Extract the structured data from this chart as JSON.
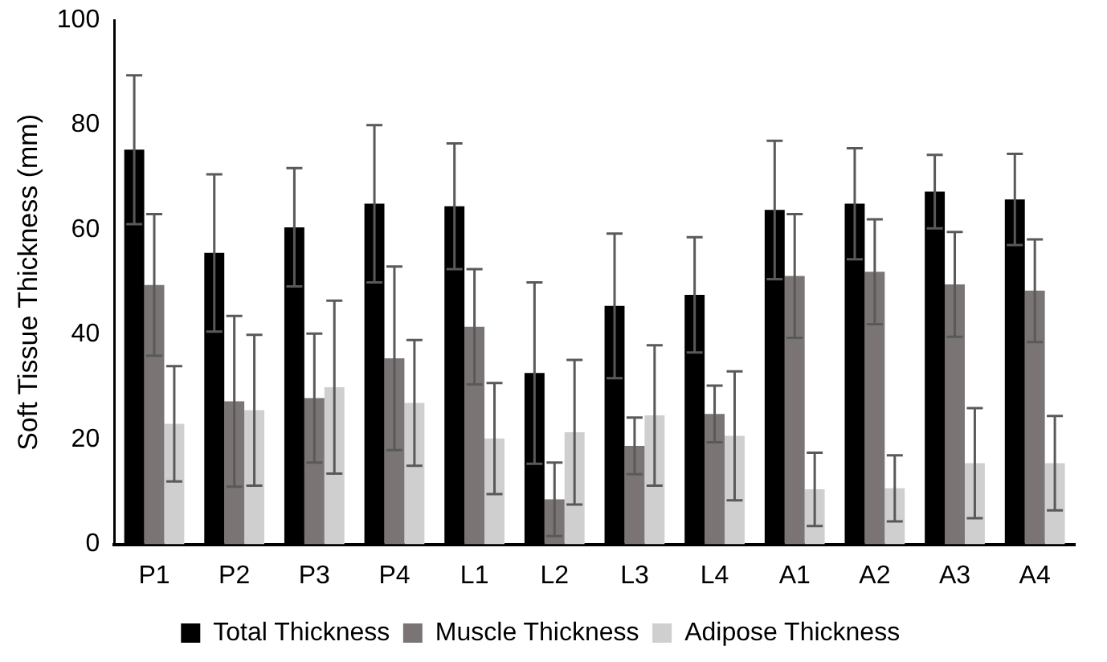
{
  "chart_data": {
    "type": "bar",
    "ylabel": "Soft Tissue Thickness (mm)",
    "categories": [
      "P1",
      "P2",
      "P3",
      "P4",
      "L1",
      "L2",
      "L3",
      "L4",
      "A1",
      "A2",
      "A3",
      "A4"
    ],
    "series": [
      {
        "name": "Total Thickness",
        "color": "#000000",
        "values": [
          75.3,
          55.6,
          60.5,
          65,
          64.5,
          32.7,
          45.5,
          47.6,
          63.8,
          65,
          67.3,
          65.8
        ],
        "errors": [
          14.2,
          15,
          11.3,
          15,
          12,
          17.3,
          13.8,
          11,
          13.2,
          10.6,
          7,
          8.7
        ]
      },
      {
        "name": "Muscle Thickness",
        "color": "#7a7574",
        "values": [
          49.5,
          27.3,
          27.9,
          35.5,
          41.5,
          8.6,
          18.8,
          24.9,
          51.2,
          52,
          49.6,
          48.4
        ],
        "errors": [
          13.5,
          16.3,
          12.3,
          17.5,
          11,
          7,
          5.4,
          5.4,
          11.8,
          10,
          10,
          9.8
        ]
      },
      {
        "name": "Adipose Thickness",
        "color": "#d0cfcf",
        "values": [
          23,
          25.6,
          30,
          27,
          20.2,
          21.4,
          24.6,
          20.7,
          10.5,
          10.7,
          15.5,
          15.5
        ],
        "errors": [
          11,
          14.4,
          16.5,
          12,
          10.6,
          13.8,
          13.4,
          12.3,
          7,
          6.3,
          10.5,
          9
        ]
      }
    ],
    "ylim": [
      0,
      100
    ],
    "yticks": [
      0,
      20,
      40,
      60,
      80,
      100
    ],
    "grid": false,
    "legend": "bottom"
  }
}
